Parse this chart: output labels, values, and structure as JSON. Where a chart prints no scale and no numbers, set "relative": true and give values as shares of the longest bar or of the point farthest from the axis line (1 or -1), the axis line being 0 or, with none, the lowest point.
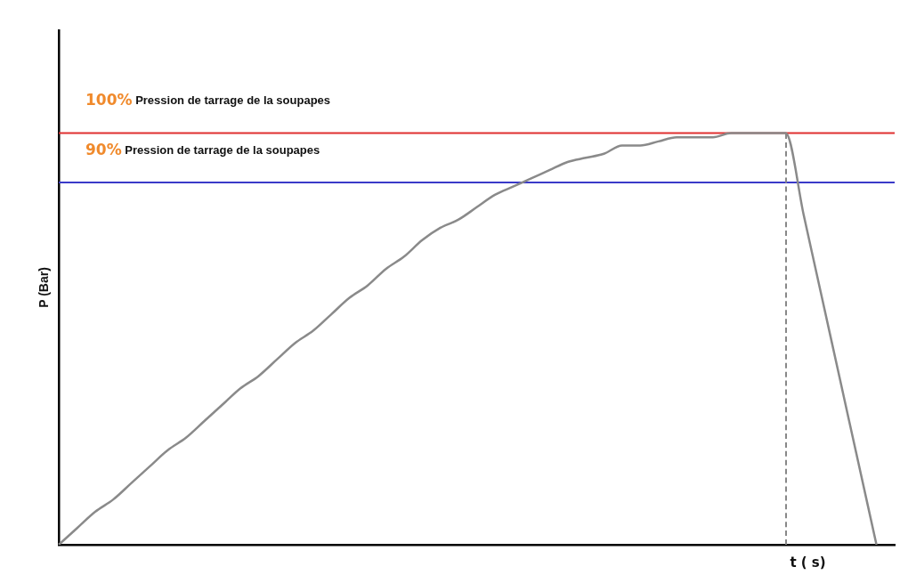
{
  "chart_data": {
    "type": "line",
    "relative": true,
    "xlabel": "t ( s)",
    "ylabel": "P (Bar)",
    "categories": [
      null,
      null,
      null,
      null,
      null,
      null,
      null,
      null,
      null,
      null,
      null,
      null,
      null,
      null,
      null,
      null,
      null,
      null,
      null,
      null,
      null,
      null,
      null,
      null,
      null,
      null,
      null,
      null,
      null,
      null,
      null,
      null,
      null,
      null,
      null,
      null,
      null,
      null,
      null,
      null,
      null,
      null,
      null,
      null,
      null,
      null,
      null
    ],
    "series": [
      {
        "color": "#8a8a8a",
        "values": [
          0,
          0.04,
          0.08,
          0.11,
          0.15,
          0.19,
          0.23,
          0.26,
          0.3,
          0.34,
          0.38,
          0.41,
          0.45,
          0.49,
          0.52,
          0.56,
          0.6,
          0.63,
          0.67,
          0.7,
          0.74,
          0.77,
          0.79,
          0.82,
          0.85,
          0.87,
          0.89,
          0.91,
          0.93,
          0.94,
          0.95,
          0.97,
          0.97,
          0.98,
          0.99,
          0.99,
          0.99,
          1,
          1,
          1,
          1,
          0.8,
          0.6,
          0.4,
          0.2,
          0,
          null
        ]
      }
    ],
    "ref_lines": [
      {
        "axis": "y",
        "value": 1,
        "label": "100% Pression de tarrage de la soupapes",
        "color": "#e03030"
      },
      {
        "axis": "y",
        "value": 0.88,
        "label": "90% Pression de tarrage de la soupapes",
        "color": "#3a3ac8"
      }
    ],
    "line_style": "solid",
    "marker": "none",
    "grid": false,
    "legend": false
  }
}
